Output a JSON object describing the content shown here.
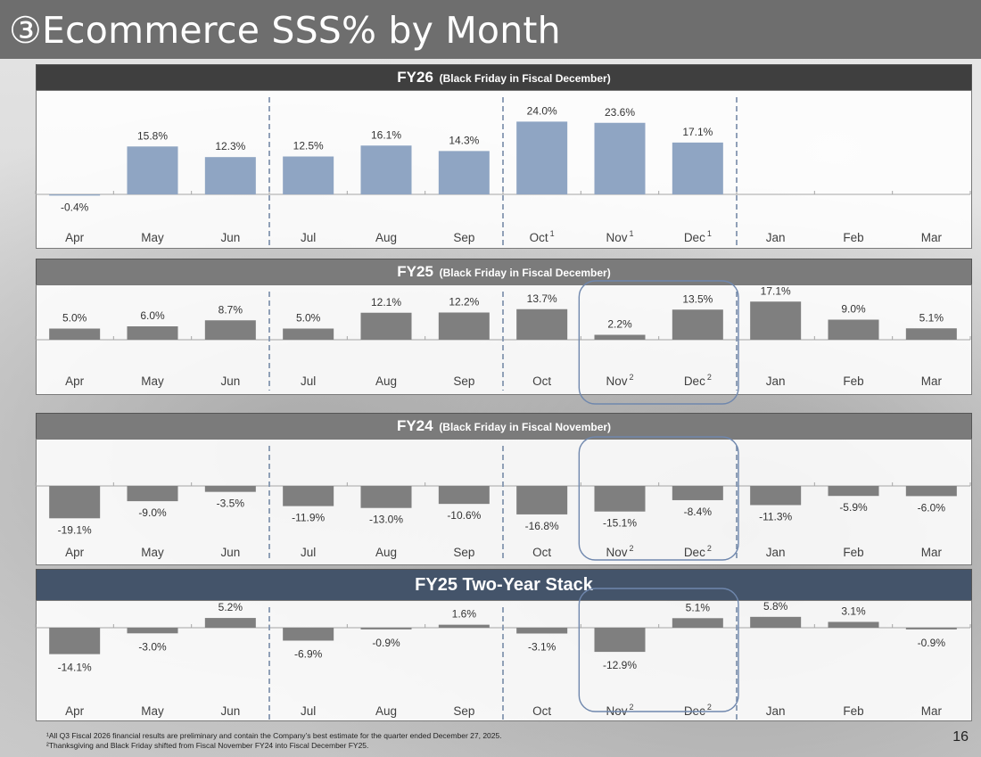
{
  "title": "③Ecommerce SSS% by Month",
  "page_number": "16",
  "footnotes": [
    "¹All Q3 Fiscal 2026 financial results are preliminary and contain the Company’s best estimate for the quarter ended December 27, 2025.",
    "²Thanksgiving and Black Friday shifted from Fiscal November FY24 into Fiscal December FY25."
  ],
  "colors": {
    "fy26_bar": "#8fa5c3",
    "other_bar": "#7f7f7f",
    "highlight_box": "#6f87ad",
    "divider": "#8496b0"
  },
  "chart_data": [
    {
      "type": "bar",
      "title": "FY26",
      "subtitle": "(Black Friday in Fiscal December)",
      "categories": [
        "Apr",
        "May",
        "Jun",
        "Jul",
        "Aug",
        "Sep",
        "Oct",
        "Nov",
        "Dec",
        "Jan",
        "Feb",
        "Mar"
      ],
      "superscripts": [
        "",
        "",
        "",
        "",
        "",
        "",
        "1",
        "1",
        "1",
        "",
        "",
        ""
      ],
      "values": [
        -0.4,
        15.8,
        12.3,
        12.5,
        16.1,
        14.3,
        24.0,
        23.6,
        17.1,
        null,
        null,
        null
      ],
      "labels": [
        "-0.4%",
        "15.8%",
        "12.3%",
        "12.5%",
        "16.1%",
        "14.3%",
        "24.0%",
        "23.6%",
        "17.1%",
        "",
        "",
        ""
      ],
      "dividers_after": [
        "Jun",
        "Sep",
        "Dec"
      ],
      "highlight": []
    },
    {
      "type": "bar",
      "title": "FY25",
      "subtitle": "(Black Friday in Fiscal December)",
      "categories": [
        "Apr",
        "May",
        "Jun",
        "Jul",
        "Aug",
        "Sep",
        "Oct",
        "Nov",
        "Dec",
        "Jan",
        "Feb",
        "Mar"
      ],
      "superscripts": [
        "",
        "",
        "",
        "",
        "",
        "",
        "",
        "2",
        "2",
        "",
        "",
        ""
      ],
      "values": [
        5.0,
        6.0,
        8.7,
        5.0,
        12.1,
        12.2,
        13.7,
        2.2,
        13.5,
        17.1,
        9.0,
        5.1
      ],
      "labels": [
        "5.0%",
        "6.0%",
        "8.7%",
        "5.0%",
        "12.1%",
        "12.2%",
        "13.7%",
        "2.2%",
        "13.5%",
        "17.1%",
        "9.0%",
        "5.1%"
      ],
      "dividers_after": [
        "Jun",
        "Sep",
        "Dec"
      ],
      "highlight": [
        "Nov",
        "Dec"
      ]
    },
    {
      "type": "bar",
      "title": "FY24",
      "subtitle": "(Black Friday in Fiscal November)",
      "categories": [
        "Apr",
        "May",
        "Jun",
        "Jul",
        "Aug",
        "Sep",
        "Oct",
        "Nov",
        "Dec",
        "Jan",
        "Feb",
        "Mar"
      ],
      "superscripts": [
        "",
        "",
        "",
        "",
        "",
        "",
        "",
        "2",
        "2",
        "",
        "",
        ""
      ],
      "values": [
        -19.1,
        -9.0,
        -3.5,
        -11.9,
        -13.0,
        -10.6,
        -16.8,
        -15.1,
        -8.4,
        -11.3,
        -5.9,
        -6.0
      ],
      "labels": [
        "-19.1%",
        "-9.0%",
        "-3.5%",
        "-11.9%",
        "-13.0%",
        "-10.6%",
        "-16.8%",
        "-15.1%",
        "-8.4%",
        "-11.3%",
        "-5.9%",
        "-6.0%"
      ],
      "dividers_after": [
        "Jun",
        "Sep",
        "Dec"
      ],
      "highlight": [
        "Nov",
        "Dec"
      ]
    },
    {
      "type": "bar",
      "title": "FY25 Two-Year Stack",
      "subtitle": "",
      "categories": [
        "Apr",
        "May",
        "Jun",
        "Jul",
        "Aug",
        "Sep",
        "Oct",
        "Nov",
        "Dec",
        "Jan",
        "Feb",
        "Mar"
      ],
      "superscripts": [
        "",
        "",
        "",
        "",
        "",
        "",
        "",
        "2",
        "2",
        "",
        "",
        ""
      ],
      "values": [
        -14.1,
        -3.0,
        5.2,
        -6.9,
        -0.9,
        1.6,
        -3.1,
        -12.9,
        5.1,
        5.8,
        3.1,
        -0.9
      ],
      "labels": [
        "-14.1%",
        "-3.0%",
        "5.2%",
        "-6.9%",
        "-0.9%",
        "1.6%",
        "-3.1%",
        "-12.9%",
        "5.1%",
        "5.8%",
        "3.1%",
        "-0.9%"
      ],
      "dividers_after": [
        "Jun",
        "Sep",
        "Dec"
      ],
      "highlight": [
        "Nov",
        "Dec"
      ]
    }
  ]
}
